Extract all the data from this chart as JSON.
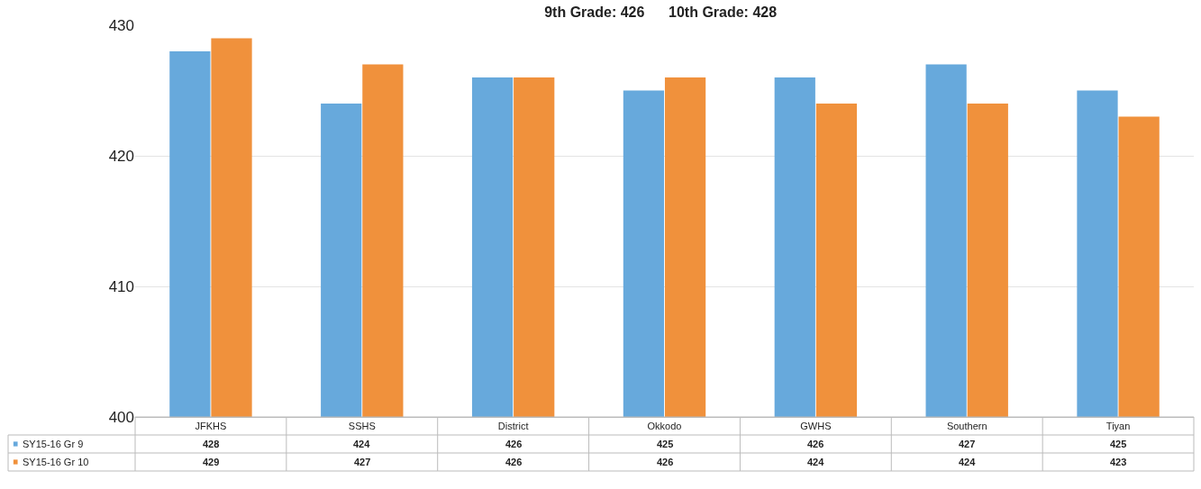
{
  "chart_data": {
    "type": "bar",
    "title": "9th Grade: 426      10th Grade: 428",
    "categories": [
      "JFKHS",
      "SSHS",
      "District",
      "Okkodo",
      "GWHS",
      "Southern",
      "Tiyan"
    ],
    "series": [
      {
        "name": "SY15-16 Gr 9",
        "color": "#67a9dc",
        "values": [
          428,
          424,
          426,
          425,
          426,
          427,
          425
        ]
      },
      {
        "name": "SY15-16 Gr 10",
        "color": "#f0913c",
        "values": [
          429,
          427,
          426,
          426,
          424,
          424,
          423
        ]
      }
    ],
    "ylim": [
      400,
      430
    ],
    "yticks": [
      400,
      410,
      420,
      430
    ],
    "grid": "y",
    "data_labels": true,
    "legend": "bottom left"
  }
}
